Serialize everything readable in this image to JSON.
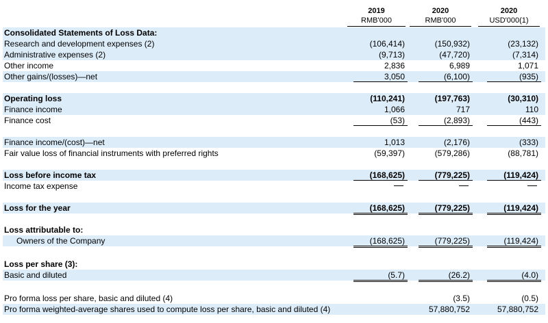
{
  "header": {
    "cols": [
      {
        "year": "2019",
        "unit": "RMB'000"
      },
      {
        "year": "2020",
        "unit": "RMB'000"
      },
      {
        "year": "2020",
        "unit": "USD'000(1)"
      }
    ]
  },
  "rows": [
    {
      "label": "Consolidated Statements of Loss Data:",
      "bold": true,
      "shade": true,
      "v": [
        "",
        "",
        ""
      ]
    },
    {
      "label": "Research and development expenses (2)",
      "shade": true,
      "v": [
        "(106,414)",
        "(150,932)",
        "(23,132)"
      ]
    },
    {
      "label": "Administrative expenses (2)",
      "shade": true,
      "v": [
        "(9,713)",
        "(47,720)",
        "(7,314)"
      ]
    },
    {
      "label": "Other income",
      "shade": false,
      "v": [
        "2,836",
        "6,989",
        "1,071"
      ]
    },
    {
      "label": "Other gains/(losses)—net",
      "shade": true,
      "v": [
        "3,050",
        "(6,100)",
        "(935)"
      ]
    },
    {
      "label": "Operating loss",
      "bold": true,
      "shade": true,
      "v": [
        "(110,241)",
        "(197,763)",
        "(30,310)"
      ]
    },
    {
      "label": "Finance income",
      "shade": true,
      "v": [
        "1,066",
        "717",
        "110"
      ]
    },
    {
      "label": "Finance cost",
      "shade": false,
      "v": [
        "(53)",
        "(2,893)",
        "(443)"
      ]
    },
    {
      "label": "Finance income/(cost)—net",
      "shade": true,
      "v": [
        "1,013",
        "(2,176)",
        "(333)"
      ]
    },
    {
      "label": "Fair value loss of financial instruments with preferred rights",
      "shade": false,
      "v": [
        "(59,397)",
        "(579,286)",
        "(88,781)"
      ]
    },
    {
      "label": "Loss before income tax",
      "bold": true,
      "shade": true,
      "v": [
        "(168,625)",
        "(779,225)",
        "(119,424)"
      ]
    },
    {
      "label": "Income tax expense",
      "shade": false,
      "v": [
        "—",
        "—",
        "—"
      ]
    },
    {
      "label": "Loss for the year",
      "bold": true,
      "shade": true,
      "v": [
        "(168,625)",
        "(779,225)",
        "(119,424)"
      ]
    },
    {
      "label": "Loss attributable to:",
      "bold": true,
      "shade": false,
      "v": [
        "",
        "",
        ""
      ]
    },
    {
      "label": "Owners of the Company",
      "indent": true,
      "shade": true,
      "v": [
        "(168,625)",
        "(779,225)",
        "(119,424)"
      ]
    },
    {
      "label": "Loss per share (3):",
      "bold": true,
      "shade": false,
      "v": [
        "",
        "",
        ""
      ]
    },
    {
      "label": "Basic and diluted",
      "shade": true,
      "v": [
        "(5.7)",
        "(26.2)",
        "(4.0)"
      ]
    },
    {
      "label": "Pro forma loss per share, basic and diluted (4)",
      "shade": false,
      "v": [
        "",
        "(3.5)",
        "(0.5)"
      ]
    },
    {
      "label": "Pro forma weighted-average shares used to compute loss per share, basic and diluted (4)",
      "shade": true,
      "v": [
        "",
        "57,880,752",
        "57,880,752"
      ]
    }
  ]
}
